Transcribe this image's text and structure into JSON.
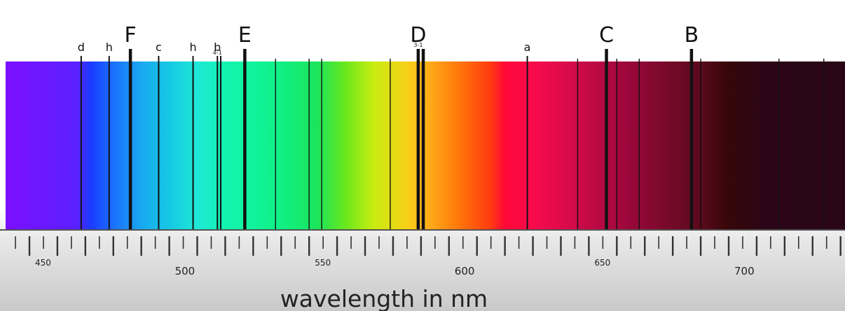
{
  "chart_data": {
    "type": "spectrum",
    "x_axis": {
      "label": "wavelength in nm",
      "range": [
        443,
        742
      ],
      "tick_labels": [
        {
          "value": 450,
          "text": "450"
        },
        {
          "value": 500,
          "text": "500"
        },
        {
          "value": 550,
          "text": "550"
        },
        {
          "value": 600,
          "text": "600"
        },
        {
          "value": 650,
          "text": "650"
        },
        {
          "value": 700,
          "text": "700"
        }
      ]
    },
    "spectrum_colors": [
      {
        "nm": 443,
        "color": "#7a10ff"
      },
      {
        "nm": 467,
        "color": "#5a20ff"
      },
      {
        "nm": 472,
        "color": "#1a3cff"
      },
      {
        "nm": 480,
        "color": "#1a70ff"
      },
      {
        "nm": 490,
        "color": "#19a8f0"
      },
      {
        "nm": 500,
        "color": "#16c8e4"
      },
      {
        "nm": 510,
        "color": "#1ee8d6"
      },
      {
        "nm": 520,
        "color": "#12f5b0"
      },
      {
        "nm": 540,
        "color": "#10f085"
      },
      {
        "nm": 553,
        "color": "#1ae45a"
      },
      {
        "nm": 563,
        "color": "#6ae81c"
      },
      {
        "nm": 573,
        "color": "#c8ec10"
      },
      {
        "nm": 585,
        "color": "#f7d018"
      },
      {
        "nm": 592,
        "color": "#ffb01a"
      },
      {
        "nm": 603,
        "color": "#ff7a0a"
      },
      {
        "nm": 615,
        "color": "#ff3a10"
      },
      {
        "nm": 620,
        "color": "#ff0838"
      },
      {
        "nm": 630,
        "color": "#f80a4c"
      },
      {
        "nm": 645,
        "color": "#d20a4a"
      },
      {
        "nm": 665,
        "color": "#98083a"
      },
      {
        "nm": 690,
        "color": "#5a0a1c"
      },
      {
        "nm": 700,
        "color": "#360608"
      },
      {
        "nm": 712,
        "color": "#2c0618"
      },
      {
        "nm": 742,
        "color": "#2a0616"
      }
    ],
    "absorption_lines": [
      {
        "nm": 468.5,
        "label": "d",
        "sub": "",
        "weight": "medium"
      },
      {
        "nm": 478.5,
        "label": "h",
        "sub": "",
        "weight": "medium"
      },
      {
        "nm": 486.1,
        "label": "F",
        "sub": "",
        "weight": "major"
      },
      {
        "nm": 496.2,
        "label": "c",
        "sub": "",
        "weight": "medium"
      },
      {
        "nm": 508.5,
        "label": "h",
        "sub": "",
        "weight": "medium"
      },
      {
        "nm": 517.2,
        "label": "b",
        "sub": "4-1",
        "weight": "medium"
      },
      {
        "nm": 518.4,
        "label": "",
        "sub": "",
        "weight": "medium"
      },
      {
        "nm": 527.0,
        "label": "E",
        "sub": "",
        "weight": "major"
      },
      {
        "nm": 538.0,
        "label": "",
        "sub": "",
        "weight": "thin"
      },
      {
        "nm": 550.0,
        "label": "",
        "sub": "",
        "weight": "thin"
      },
      {
        "nm": 554.5,
        "label": "",
        "sub": "",
        "weight": "thin"
      },
      {
        "nm": 579.0,
        "label": "",
        "sub": "",
        "weight": "thin"
      },
      {
        "nm": 589.0,
        "label": "D",
        "sub": "3-1",
        "weight": "major"
      },
      {
        "nm": 590.8,
        "label": "",
        "sub": "",
        "weight": "major"
      },
      {
        "nm": 628.0,
        "label": "a",
        "sub": "",
        "weight": "medium"
      },
      {
        "nm": 646.0,
        "label": "",
        "sub": "",
        "weight": "thin"
      },
      {
        "nm": 656.3,
        "label": "C",
        "sub": "",
        "weight": "major"
      },
      {
        "nm": 660.0,
        "label": "",
        "sub": "",
        "weight": "thin"
      },
      {
        "nm": 668.0,
        "label": "",
        "sub": "",
        "weight": "thin"
      },
      {
        "nm": 686.7,
        "label": "B",
        "sub": "",
        "weight": "major"
      },
      {
        "nm": 690.0,
        "label": "",
        "sub": "",
        "weight": "thin"
      },
      {
        "nm": 718.0,
        "label": "",
        "sub": "",
        "weight": "thin"
      },
      {
        "nm": 734.0,
        "label": "",
        "sub": "",
        "weight": "thin"
      }
    ]
  }
}
